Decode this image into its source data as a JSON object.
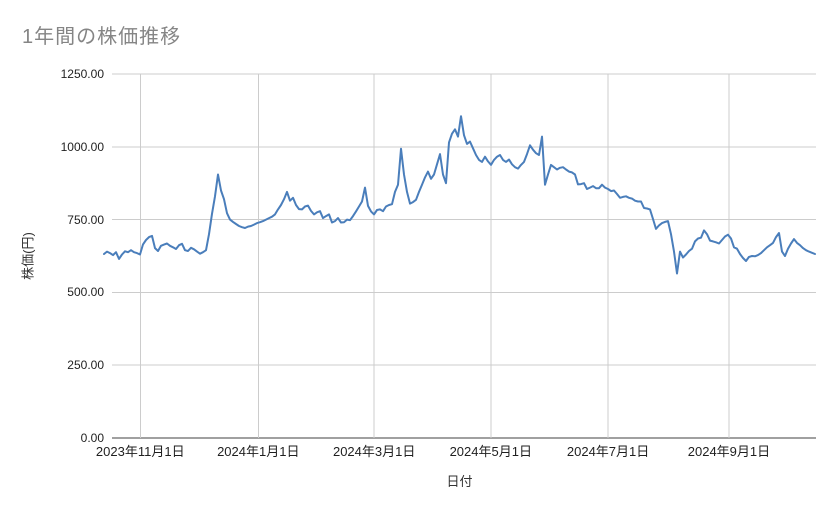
{
  "chart_data": {
    "type": "line",
    "title": "1年間の株価推移",
    "xlabel": "日付",
    "ylabel": "株価(円)",
    "ylim": [
      0,
      1250
    ],
    "yticks": [
      0,
      250,
      500,
      750,
      1000,
      1250
    ],
    "y_tick_labels": [
      "0.00",
      "250.00",
      "500.00",
      "750.00",
      "1000.00",
      "1250.00"
    ],
    "x_ticks": [
      {
        "label": "2023年11月1日",
        "pos": 0.051
      },
      {
        "label": "2024年1月1日",
        "pos": 0.217
      },
      {
        "label": "2024年3月1日",
        "pos": 0.38
      },
      {
        "label": "2024年5月1日",
        "pos": 0.544
      },
      {
        "label": "2024年7月1日",
        "pos": 0.709
      },
      {
        "label": "2024年9月1日",
        "pos": 0.879
      }
    ],
    "grid": true,
    "legend": false,
    "colors": {
      "line": "#4a7ebb",
      "gridline": "#cccccc",
      "axis_line": "#424242",
      "title_text": "#858585",
      "tick_text": "#1f1f1f",
      "axis_title_text": "#333333",
      "background": "#ffffff"
    },
    "series": [
      {
        "color": "#4a7ebb",
        "values": [
          632,
          640,
          635,
          628,
          638,
          615,
          630,
          641,
          638,
          645,
          638,
          635,
          630,
          665,
          680,
          690,
          694,
          652,
          642,
          660,
          664,
          668,
          660,
          655,
          649,
          662,
          667,
          645,
          642,
          653,
          648,
          640,
          633,
          638,
          645,
          700,
          770,
          830,
          905,
          850,
          820,
          772,
          750,
          742,
          735,
          728,
          724,
          721,
          726,
          728,
          733,
          738,
          741,
          745,
          750,
          755,
          760,
          768,
          785,
          800,
          820,
          845,
          815,
          825,
          800,
          786,
          785,
          795,
          798,
          780,
          768,
          775,
          779,
          755,
          762,
          768,
          740,
          745,
          755,
          740,
          741,
          750,
          748,
          762,
          778,
          795,
          812,
          860,
          797,
          778,
          768,
          783,
          785,
          779,
          795,
          800,
          803,
          845,
          870,
          993,
          905,
          845,
          805,
          810,
          818,
          845,
          870,
          895,
          915,
          890,
          905,
          940,
          975,
          905,
          875,
          1015,
          1045,
          1060,
          1035,
          1105,
          1040,
          1010,
          1018,
          995,
          972,
          955,
          948,
          966,
          950,
          938,
          955,
          966,
          972,
          955,
          948,
          956,
          940,
          930,
          925,
          938,
          948,
          975,
          1005,
          990,
          978,
          972,
          1035,
          870,
          905,
          938,
          930,
          922,
          928,
          930,
          922,
          915,
          912,
          905,
          871,
          872,
          875,
          855,
          860,
          865,
          858,
          858,
          870,
          860,
          855,
          848,
          850,
          838,
          825,
          828,
          830,
          825,
          822,
          815,
          812,
          812,
          790,
          788,
          785,
          752,
          718,
          730,
          738,
          742,
          745,
          700,
          640,
          565,
          640,
          620,
          630,
          642,
          650,
          675,
          685,
          688,
          713,
          700,
          678,
          675,
          672,
          668,
          680,
          692,
          698,
          685,
          655,
          650,
          632,
          618,
          608,
          622,
          625,
          624,
          628,
          635,
          645,
          655,
          662,
          670,
          690,
          704,
          640,
          625,
          650,
          668,
          683,
          670,
          662,
          652,
          645,
          640,
          636,
          632
        ]
      }
    ]
  }
}
